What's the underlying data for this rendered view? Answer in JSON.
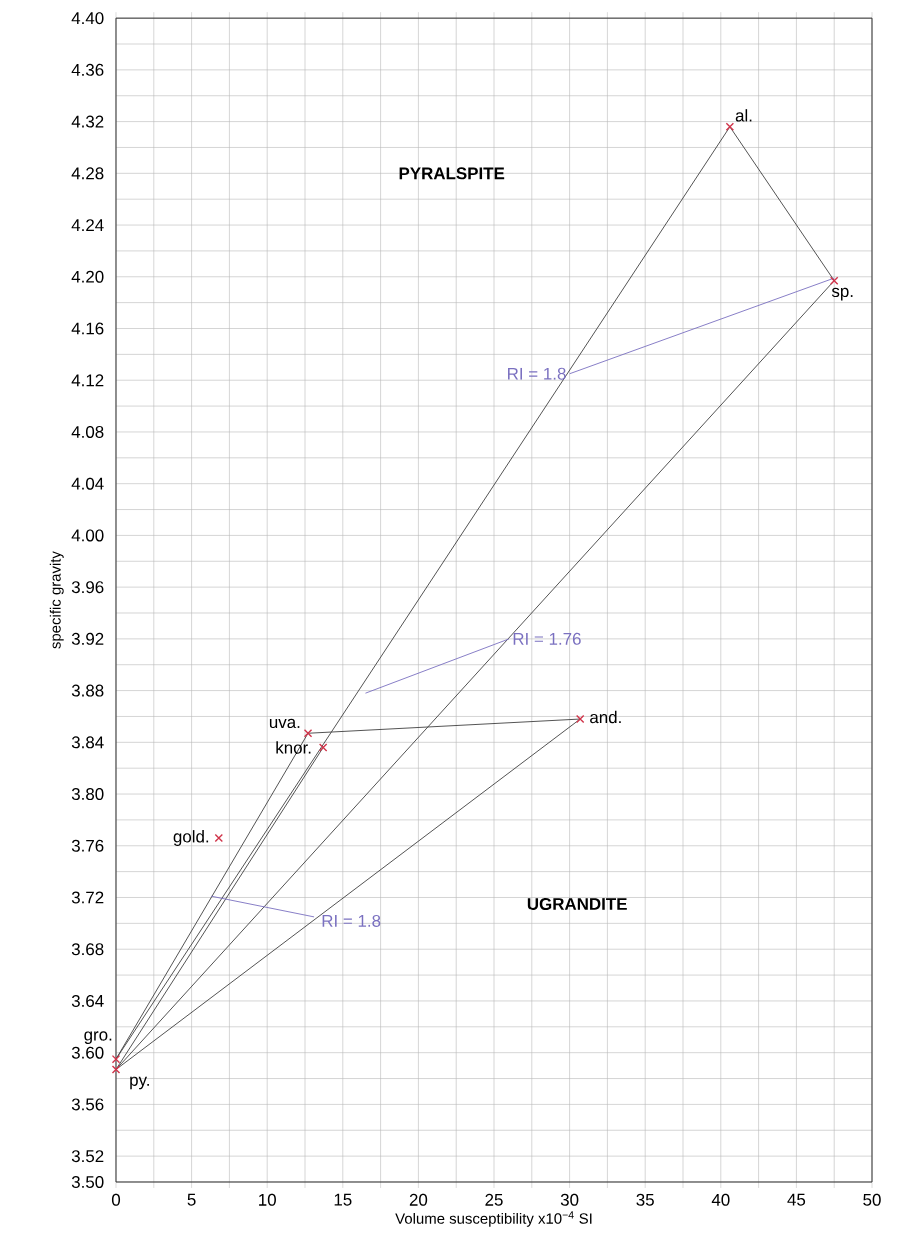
{
  "chart_data": {
    "type": "scatter",
    "xlabel": "Volume susceptibility x10$^{−4}$ SI",
    "ylabel": "specific gravity",
    "xlim": [
      0,
      50
    ],
    "ylim": [
      3.5,
      4.4
    ],
    "xticks": [
      0,
      {
        "value": 2.5,
        "label": null
      },
      5,
      {
        "value": 7.5,
        "label": null
      },
      10,
      {
        "value": 12.5,
        "label": null
      },
      15,
      {
        "value": 17.5,
        "label": null
      },
      20,
      {
        "value": 22.5,
        "label": null
      },
      25,
      {
        "value": 27.5,
        "label": null
      },
      30,
      {
        "value": 32.5,
        "label": null
      },
      35,
      {
        "value": 37.5,
        "label": null
      },
      40,
      {
        "value": 42.5,
        "label": null
      },
      45,
      {
        "value": 47.5,
        "label": null
      },
      50
    ],
    "yticks": [
      {
        "value": 3.5,
        "label": "3.50"
      },
      3.52,
      {
        "value": 3.54,
        "label": null
      },
      3.56,
      {
        "value": 3.58,
        "label": null
      },
      {
        "value": 3.6,
        "label": "3.60"
      },
      {
        "value": 3.62,
        "label": null
      },
      3.64,
      {
        "value": 3.66,
        "label": null
      },
      3.68,
      {
        "value": 3.7,
        "label": null
      },
      3.72,
      {
        "value": 3.74,
        "label": null
      },
      3.76,
      {
        "value": 3.78,
        "label": null
      },
      {
        "value": 3.8,
        "label": "3.80"
      },
      {
        "value": 3.82,
        "label": null
      },
      3.84,
      {
        "value": 3.86,
        "label": null
      },
      3.88,
      {
        "value": 3.9,
        "label": null
      },
      3.92,
      {
        "value": 3.94,
        "label": null
      },
      3.96,
      {
        "value": 3.98,
        "label": null
      },
      {
        "value": 4.0,
        "label": "4.00"
      },
      {
        "value": 4.02,
        "label": null
      },
      4.04,
      {
        "value": 4.06,
        "label": null
      },
      4.08,
      {
        "value": 4.1,
        "label": null
      },
      4.12,
      {
        "value": 4.14,
        "label": null
      },
      4.16,
      {
        "value": 4.18,
        "label": null
      },
      {
        "value": 4.2,
        "label": "4.20"
      },
      {
        "value": 4.22,
        "label": null
      },
      4.24,
      {
        "value": 4.26,
        "label": null
      },
      4.28,
      {
        "value": 4.3,
        "label": null
      },
      4.32,
      {
        "value": 4.34,
        "label": null
      },
      4.36,
      {
        "value": 4.38,
        "label": null
      },
      {
        "value": 4.4,
        "label": "4.40"
      }
    ],
    "grid": true,
    "series": [
      {
        "type": "line",
        "color": "#404040",
        "x": [
          0,
          12.7
        ],
        "values": [
          3.595,
          3.847
        ]
      },
      {
        "type": "line",
        "color": "#404040",
        "x": [
          0,
          40.6
        ],
        "values": [
          3.595,
          4.316
        ]
      },
      {
        "type": "line",
        "color": "#404040",
        "x": [
          0,
          13.7
        ],
        "values": [
          3.587,
          3.836
        ]
      },
      {
        "type": "line",
        "color": "#404040",
        "x": [
          0,
          47.5
        ],
        "values": [
          3.587,
          4.197
        ]
      },
      {
        "type": "line",
        "color": "#404040",
        "x": [
          0,
          30.7
        ],
        "values": [
          3.587,
          3.858
        ]
      },
      {
        "type": "line",
        "color": "#404040",
        "x": [
          12.7,
          30.7
        ],
        "values": [
          3.847,
          3.858
        ]
      },
      {
        "type": "line",
        "color": "#404040",
        "x": [
          40.6,
          47.5
        ],
        "values": [
          4.316,
          4.197
        ]
      },
      {
        "type": "line",
        "color": "#7a70c0",
        "x": [
          30.0,
          47.5
        ],
        "values": [
          4.125,
          4.199
        ]
      },
      {
        "type": "line",
        "color": "#7a70c0",
        "x": [
          16.5,
          26.0
        ],
        "values": [
          3.878,
          3.92
        ]
      },
      {
        "type": "line",
        "color": "#7a70c0",
        "x": [
          6.3,
          13.1
        ],
        "values": [
          3.721,
          3.705
        ]
      },
      {
        "marker": "cross",
        "color": "#d0344a",
        "x": [
          0,
          0,
          6.8,
          12.7,
          13.7,
          30.7,
          40.6,
          47.5
        ],
        "values": [
          3.595,
          3.587,
          3.766,
          3.847,
          3.836,
          3.858,
          4.316,
          4.197
        ]
      }
    ],
    "annotations": [
      {
        "text": "al.",
        "x": 40.6,
        "y": 4.316
      },
      {
        "text": "sp.",
        "x": 47.5,
        "y": 4.197
      },
      {
        "text": "uva.",
        "x": 12.7,
        "y": 3.847
      },
      {
        "text": "knor.",
        "x": 13.7,
        "y": 3.836
      },
      {
        "text": "and.",
        "x": 30.7,
        "y": 3.858
      },
      {
        "text": "gold.",
        "x": 6.8,
        "y": 3.766
      },
      {
        "text": "gro.",
        "x": 0,
        "y": 3.595
      },
      {
        "text": "py.",
        "x": 0,
        "y": 3.587
      },
      {
        "text": "RI = 1.8",
        "x": 30.0,
        "y": 4.125
      },
      {
        "text": "RI = 1.76",
        "x": 26.0,
        "y": 3.92
      },
      {
        "text": "RI = 1.8",
        "x": 13.1,
        "y": 3.705
      },
      "PYRALSPITE",
      "UGRANDITE"
    ]
  }
}
